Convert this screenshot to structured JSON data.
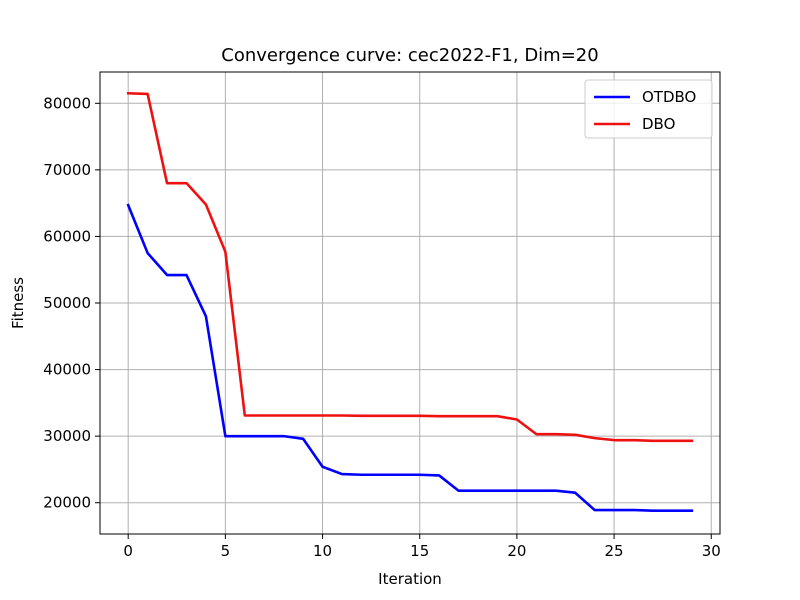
{
  "chart_data": {
    "type": "line",
    "title": "Convergence curve:  cec2022-F1, Dim=20",
    "xlabel": "Iteration",
    "ylabel": "Fitness",
    "xlim": [
      -1.45,
      30.45
    ],
    "ylim": [
      15300,
      84700
    ],
    "xticks": [
      0,
      5,
      10,
      15,
      20,
      25,
      30
    ],
    "xtick_labels": [
      "0",
      "5",
      "10",
      "15",
      "20",
      "25",
      "30"
    ],
    "yticks": [
      20000,
      30000,
      40000,
      50000,
      60000,
      70000,
      80000
    ],
    "ytick_labels": [
      "20000",
      "30000",
      "40000",
      "50000",
      "60000",
      "70000",
      "80000"
    ],
    "grid": true,
    "legend_position": "top-right",
    "x": [
      0,
      1,
      2,
      3,
      4,
      5,
      6,
      7,
      8,
      9,
      10,
      11,
      12,
      13,
      14,
      15,
      16,
      17,
      18,
      19,
      20,
      21,
      22,
      23,
      24,
      25,
      26,
      27,
      28,
      29
    ],
    "series": [
      {
        "name": "OTDBO",
        "color": "#0000ff",
        "values": [
          64700,
          57500,
          54200,
          54200,
          48000,
          30000,
          30000,
          30000,
          30000,
          29600,
          25400,
          24300,
          24200,
          24200,
          24200,
          24200,
          24100,
          21800,
          21800,
          21800,
          21800,
          21800,
          21800,
          21500,
          18900,
          18900,
          18900,
          18800,
          18800,
          18800
        ]
      },
      {
        "name": "DBO",
        "color": "#ee1111",
        "values": [
          81500,
          81400,
          68000,
          68000,
          64800,
          57700,
          33100,
          33100,
          33100,
          33100,
          33100,
          33100,
          33050,
          33050,
          33050,
          33050,
          33000,
          33000,
          33000,
          33000,
          32500,
          30300,
          30300,
          30200,
          29700,
          29400,
          29400,
          29300,
          29300,
          29300
        ]
      }
    ]
  }
}
